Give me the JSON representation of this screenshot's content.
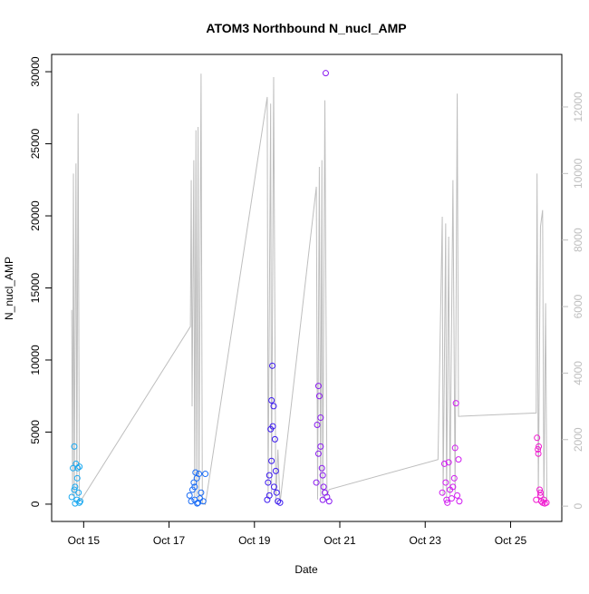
{
  "chart_data": {
    "type": "scatter",
    "title": "ATOM3 Northbound N_nucl_AMP",
    "x_label": "Date",
    "y_label": "N_nucl_AMP",
    "xlim": [
      14.25,
      26.2
    ],
    "xticks": [
      {
        "value": 15,
        "label": "Oct 15"
      },
      {
        "value": 17,
        "label": "Oct 17"
      },
      {
        "value": 19,
        "label": "Oct 19"
      },
      {
        "value": 21,
        "label": "Oct 21"
      },
      {
        "value": 23,
        "label": "Oct 23"
      },
      {
        "value": 25,
        "label": "Oct 25"
      }
    ],
    "ylim": [
      -1200,
      31200
    ],
    "yticks": [
      0,
      5000,
      10000,
      15000,
      20000,
      25000,
      30000
    ],
    "y2lim": [
      -460,
      13580
    ],
    "y2ticks": [
      0,
      2000,
      4000,
      6000,
      8000,
      10000,
      12000
    ],
    "y2color": "#bebebe",
    "series": [
      {
        "axis": "y2",
        "color": "#bebebe",
        "x": [
          14.72,
          14.74,
          14.76,
          14.78,
          14.82,
          14.84,
          14.87,
          14.9,
          14.95,
          17.5,
          17.52,
          17.54,
          17.58,
          17.6,
          17.63,
          17.65,
          17.68,
          17.7,
          17.75,
          17.78,
          17.85,
          19.3,
          19.32,
          19.38,
          19.4,
          19.45,
          19.5,
          19.55,
          19.6,
          20.45,
          20.48,
          20.52,
          20.55,
          20.58,
          20.6,
          20.65,
          20.7,
          20.75,
          23.3,
          23.4,
          23.42,
          23.48,
          23.5,
          23.55,
          23.58,
          23.65,
          23.7,
          23.75,
          23.78,
          25.6,
          25.62,
          25.65,
          25.7,
          25.75,
          25.78,
          25.82,
          25.85
        ],
        "values": [
          5900,
          300,
          10000,
          200,
          10300,
          300,
          11800,
          150,
          200,
          5400,
          9800,
          3000,
          10400,
          200,
          11300,
          300,
          11400,
          200,
          13000,
          100,
          50,
          12300,
          200,
          12100,
          300,
          12900,
          100,
          1700,
          100,
          9600,
          200,
          10200,
          300,
          10400,
          200,
          12200,
          300,
          500,
          1400,
          8700,
          300,
          8500,
          200,
          8100,
          300,
          9800,
          400,
          12400,
          2700,
          2800,
          10000,
          300,
          8400,
          8900,
          200,
          6100,
          200
        ]
      },
      {
        "color": "#1aa8f0",
        "x": [
          14.72,
          14.75,
          14.78,
          14.8,
          14.82,
          14.84,
          14.86,
          14.88,
          14.9,
          14.92,
          14.78,
          14.85,
          14.8,
          14.9
        ],
        "values": [
          500,
          2500,
          4000,
          1200,
          2800,
          300,
          2500,
          800,
          100,
          200,
          1000,
          1800,
          50,
          2600
        ]
      },
      {
        "color": "#1a6cf5",
        "x": [
          17.48,
          17.52,
          17.55,
          17.58,
          17.6,
          17.62,
          17.65,
          17.68,
          17.7,
          17.72,
          17.75,
          17.8,
          17.85,
          17.6,
          17.66
        ],
        "values": [
          600,
          200,
          1000,
          1500,
          300,
          2200,
          1800,
          100,
          2100,
          400,
          800,
          200,
          2100,
          1200,
          50
        ]
      },
      {
        "color": "#3c1af0",
        "x": [
          19.3,
          19.32,
          19.35,
          19.38,
          19.4,
          19.42,
          19.45,
          19.48,
          19.5,
          19.52,
          19.55,
          19.6,
          19.4,
          19.46,
          19.35,
          19.43
        ],
        "values": [
          300,
          1500,
          2000,
          5200,
          7200,
          9600,
          6800,
          4500,
          2300,
          800,
          200,
          100,
          3000,
          1200,
          600,
          5400
        ]
      },
      {
        "color": "#8a1af0",
        "x": [
          20.45,
          20.47,
          20.5,
          20.52,
          20.55,
          20.58,
          20.6,
          20.62,
          20.65,
          20.67,
          20.7,
          20.75,
          20.5,
          20.55,
          20.6
        ],
        "values": [
          1500,
          5500,
          8200,
          7500,
          4000,
          2500,
          2000,
          1200,
          800,
          29900,
          500,
          200,
          3500,
          6000,
          300
        ]
      },
      {
        "color": "#d01af0",
        "x": [
          23.4,
          23.45,
          23.48,
          23.5,
          23.55,
          23.58,
          23.62,
          23.65,
          23.7,
          23.72,
          23.75,
          23.78,
          23.8,
          23.52,
          23.68
        ],
        "values": [
          800,
          2800,
          1500,
          300,
          2900,
          1000,
          400,
          1200,
          3900,
          7000,
          600,
          3100,
          200,
          100,
          1800
        ]
      },
      {
        "color": "#f01ad0",
        "x": [
          25.6,
          25.62,
          25.64,
          25.66,
          25.68,
          25.7,
          25.72,
          25.75,
          25.78,
          25.8,
          25.84,
          25.65,
          25.7
        ],
        "values": [
          300,
          4600,
          3800,
          4000,
          1000,
          600,
          200,
          100,
          300,
          50,
          100,
          3500,
          800
        ]
      }
    ]
  }
}
